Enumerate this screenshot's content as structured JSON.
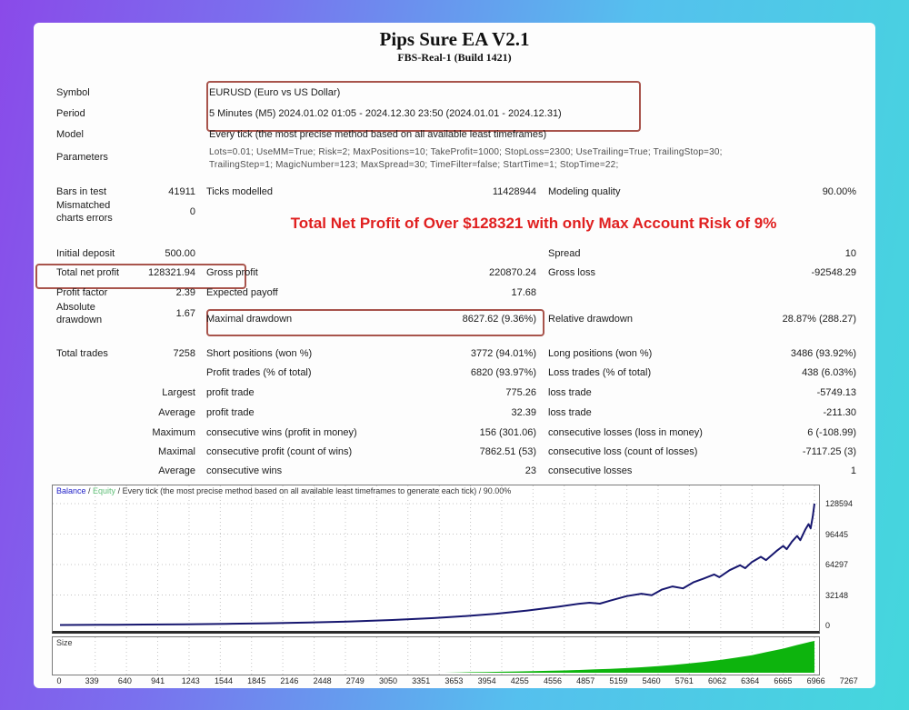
{
  "window": {
    "title": "Pips Sure EA V2.1",
    "subtitle": "FBS-Real-1 (Build 1421)"
  },
  "info": {
    "symbol_label": "Symbol",
    "symbol_value": "EURUSD (Euro vs US Dollar)",
    "period_label": "Period",
    "period_value": "5 Minutes (M5) 2024.01.02 01:05 - 2024.12.30 23:50 (2024.01.01 - 2024.12.31)",
    "model_label": "Model",
    "model_value": "Every tick (the most precise method based on all available least timeframes)",
    "parameters_label": "Parameters",
    "parameters_line1": "Lots=0.01; UseMM=True; Risk=2; MaxPositions=10; TakeProfit=1000; StopLoss=2300; UseTrailing=True; TrailingStop=30;",
    "parameters_line2": "TrailingStep=1; MagicNumber=123; MaxSpread=30; TimeFilter=false; StartTime=1; StopTime=22;"
  },
  "stats": {
    "bars_in_test_label": "Bars in test",
    "bars_in_test": "41911",
    "ticks_modelled_label": "Ticks modelled",
    "ticks_modelled": "11428944",
    "modelling_quality_label": "Modeling quality",
    "modelling_quality": "90.00%",
    "mismatched_label_line1": "Mismatched",
    "mismatched_label_line2": "charts errors",
    "mismatched_value": "0",
    "banner": "Total Net Profit of Over $128321 with only Max Account Risk of 9%",
    "initial_deposit_label": "Initial deposit",
    "initial_deposit": "500.00",
    "spread_label": "Spread",
    "spread": "10",
    "total_net_profit_label": "Total net profit",
    "total_net_profit": "128321.94",
    "gross_profit_label": "Gross profit",
    "gross_profit": "220870.24",
    "gross_loss_label": "Gross loss",
    "gross_loss": "-92548.29",
    "profit_factor_label": "Profit factor",
    "profit_factor": "2.39",
    "expected_payoff_label": "Expected payoff",
    "expected_payoff": "17.68",
    "absolute_drawdown_label_line1": "Absolute",
    "absolute_drawdown_label_line2": "drawdown",
    "absolute_drawdown": "1.67",
    "maximal_drawdown_label": "Maximal drawdown",
    "maximal_drawdown": "8627.62 (9.36%)",
    "relative_drawdown_label": "Relative drawdown",
    "relative_drawdown": "28.87% (288.27)",
    "total_trades_label": "Total trades",
    "total_trades": "7258",
    "short_positions_label": "Short positions (won %)",
    "short_positions": "3772 (94.01%)",
    "long_positions_label": "Long positions (won %)",
    "long_positions": "3486 (93.92%)",
    "profit_trades_label": "Profit trades (% of total)",
    "profit_trades": "6820 (93.97%)",
    "loss_trades_label": "Loss trades (% of total)",
    "loss_trades": "438 (6.03%)",
    "largest_label": "Largest",
    "profit_trade_label": "profit trade",
    "largest_profit_trade": "775.26",
    "loss_trade_label": "loss trade",
    "largest_loss_trade": "-5749.13",
    "average_label": "Average",
    "avg_profit_trade": "32.39",
    "avg_loss_trade": "-211.30",
    "maximum_label": "Maximum",
    "consec_wins_money_label": "consecutive wins (profit in money)",
    "max_consec_wins": "156 (301.06)",
    "consec_losses_money_label": "consecutive losses (loss in money)",
    "max_consec_losses": "6 (-108.99)",
    "maximal_label": "Maximal",
    "consec_profit_label": "consecutive profit (count of wins)",
    "max_consec_profit": "7862.51 (53)",
    "consec_loss_label": "consecutive loss (count of losses)",
    "max_consec_loss": "-7117.25 (3)",
    "average2_label": "Average",
    "avg_consec_wins_label": "consecutive wins",
    "avg_consec_wins": "23",
    "avg_consec_losses_label": "consecutive losses",
    "avg_consec_losses": "1"
  },
  "chart_data": {
    "type": "line",
    "legend": {
      "balance": "Balance",
      "equity": "Equity",
      "sep": " / ",
      "rest": " Every tick (the most precise method based on all available least timeframes to generate each tick) / 90.00%"
    },
    "xlim": [
      0,
      7267
    ],
    "ylim": [
      0,
      128594
    ],
    "y_ticks": [
      128594,
      96445,
      64297,
      32148,
      0
    ],
    "x_ticks": [
      0,
      339,
      640,
      941,
      1243,
      1544,
      1845,
      2146,
      2448,
      2749,
      3050,
      3351,
      3653,
      3954,
      4255,
      4556,
      4857,
      5159,
      5460,
      5761,
      6062,
      6364,
      6665,
      6966,
      7267
    ],
    "grid": "dashed",
    "colors": {
      "balance": "#17176f",
      "equity": "#3faf5f",
      "size_bars": "#0db40d",
      "grid": "#c4c4c4"
    },
    "series": [
      {
        "name": "Balance",
        "points": [
          [
            0,
            500
          ],
          [
            400,
            680
          ],
          [
            800,
            920
          ],
          [
            1200,
            1250
          ],
          [
            1600,
            1700
          ],
          [
            2000,
            2310
          ],
          [
            2400,
            3130
          ],
          [
            2800,
            4250
          ],
          [
            3200,
            5760
          ],
          [
            3600,
            7820
          ],
          [
            3900,
            9850
          ],
          [
            4200,
            12400
          ],
          [
            4500,
            15700
          ],
          [
            4800,
            19800
          ],
          [
            5000,
            22900
          ],
          [
            5100,
            24000
          ],
          [
            5200,
            23000
          ],
          [
            5300,
            26200
          ],
          [
            5460,
            31000
          ],
          [
            5600,
            33500
          ],
          [
            5700,
            32000
          ],
          [
            5800,
            38000
          ],
          [
            5900,
            41200
          ],
          [
            6000,
            39200
          ],
          [
            6100,
            45500
          ],
          [
            6200,
            49500
          ],
          [
            6300,
            53800
          ],
          [
            6350,
            51000
          ],
          [
            6450,
            58300
          ],
          [
            6550,
            63500
          ],
          [
            6600,
            60500
          ],
          [
            6665,
            67000
          ],
          [
            6750,
            72500
          ],
          [
            6800,
            69000
          ],
          [
            6900,
            78500
          ],
          [
            6966,
            84000
          ],
          [
            7000,
            80500
          ],
          [
            7050,
            88500
          ],
          [
            7100,
            94500
          ],
          [
            7130,
            90000
          ],
          [
            7180,
            101500
          ],
          [
            7210,
            107000
          ],
          [
            7230,
            102500
          ],
          [
            7250,
            115000
          ],
          [
            7267,
            128594
          ]
        ]
      },
      {
        "name": "Equity",
        "points": [
          [
            0,
            500
          ],
          [
            400,
            680
          ],
          [
            800,
            920
          ],
          [
            1200,
            1250
          ],
          [
            1600,
            1700
          ],
          [
            2000,
            2310
          ],
          [
            2400,
            3130
          ],
          [
            2800,
            4250
          ],
          [
            3200,
            5760
          ],
          [
            3600,
            7820
          ],
          [
            3900,
            9850
          ],
          [
            4200,
            12400
          ],
          [
            4500,
            15700
          ],
          [
            4800,
            19800
          ],
          [
            5000,
            22900
          ],
          [
            5100,
            24000
          ],
          [
            5200,
            23000
          ],
          [
            5300,
            26200
          ],
          [
            5460,
            31000
          ],
          [
            5600,
            33500
          ],
          [
            5700,
            32000
          ],
          [
            5800,
            38000
          ],
          [
            5900,
            41200
          ],
          [
            6000,
            39200
          ],
          [
            6100,
            45500
          ],
          [
            6200,
            49500
          ],
          [
            6300,
            53800
          ],
          [
            6350,
            51000
          ],
          [
            6450,
            58300
          ],
          [
            6550,
            63500
          ],
          [
            6600,
            60500
          ],
          [
            6665,
            67000
          ],
          [
            6750,
            72500
          ],
          [
            6800,
            69000
          ],
          [
            6900,
            78500
          ],
          [
            6966,
            84000
          ],
          [
            7000,
            80500
          ],
          [
            7050,
            88500
          ],
          [
            7100,
            94500
          ],
          [
            7130,
            90000
          ],
          [
            7180,
            101500
          ],
          [
            7210,
            107000
          ],
          [
            7230,
            102500
          ],
          [
            7250,
            115000
          ],
          [
            7267,
            128594
          ]
        ]
      }
    ],
    "size_panel": {
      "label": "Size",
      "unit": "relative",
      "points": [
        [
          0,
          0
        ],
        [
          3700,
          0
        ],
        [
          3954,
          1
        ],
        [
          4100,
          1.4
        ],
        [
          4255,
          1.9
        ],
        [
          4400,
          2.4
        ],
        [
          4556,
          3
        ],
        [
          4700,
          3.7
        ],
        [
          4857,
          4.5
        ],
        [
          5000,
          5.4
        ],
        [
          5159,
          6.5
        ],
        [
          5300,
          7.6
        ],
        [
          5460,
          9.1
        ],
        [
          5600,
          10.7
        ],
        [
          5761,
          12.8
        ],
        [
          5900,
          15
        ],
        [
          6062,
          18
        ],
        [
          6200,
          21
        ],
        [
          6364,
          25
        ],
        [
          6500,
          29
        ],
        [
          6665,
          34
        ],
        [
          6800,
          40
        ],
        [
          6966,
          47
        ],
        [
          7100,
          54
        ],
        [
          7200,
          59
        ],
        [
          7267,
          62
        ]
      ]
    }
  }
}
